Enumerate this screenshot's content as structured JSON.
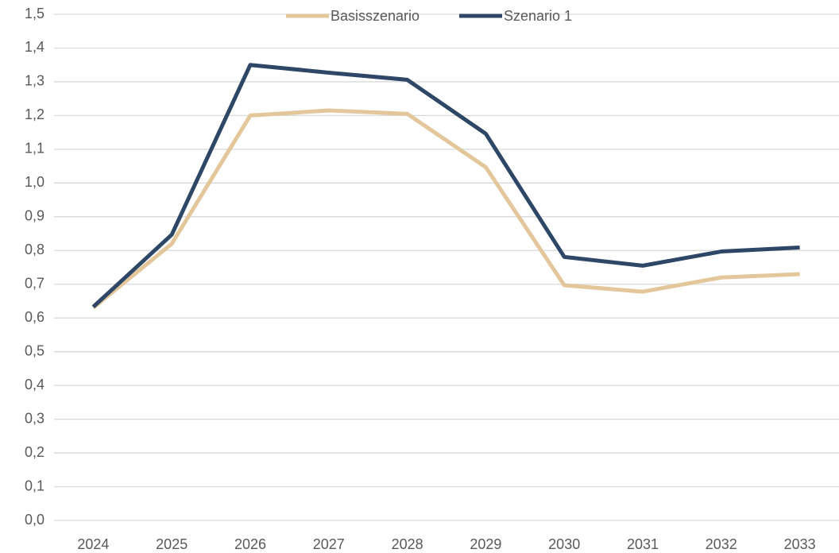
{
  "chart_data": {
    "type": "line",
    "categories": [
      "2024",
      "2025",
      "2026",
      "2027",
      "2028",
      "2029",
      "2030",
      "2031",
      "2032",
      "2033"
    ],
    "series": [
      {
        "name": "Basisszenario",
        "color": "#e3c79b",
        "values": [
          0.63,
          0.82,
          1.2,
          1.215,
          1.205,
          1.047,
          0.697,
          0.678,
          0.72,
          0.73
        ]
      },
      {
        "name": "Szenario 1",
        "color": "#2e4766",
        "values": [
          0.633,
          0.847,
          1.35,
          1.327,
          1.306,
          1.146,
          0.781,
          0.755,
          0.797,
          0.809
        ]
      }
    ],
    "ylim": [
      0,
      1.5
    ],
    "yticks": [
      {
        "value": 0,
        "label": "0,0"
      },
      {
        "value": 0.1,
        "label": "0,1"
      },
      {
        "value": 0.2,
        "label": "0,2"
      },
      {
        "value": 0.3,
        "label": "0,3"
      },
      {
        "value": 0.4,
        "label": "0,4"
      },
      {
        "value": 0.5,
        "label": "0,5"
      },
      {
        "value": 0.6,
        "label": "0,6"
      },
      {
        "value": 0.7,
        "label": "0,7"
      },
      {
        "value": 0.8,
        "label": "0,8"
      },
      {
        "value": 0.9,
        "label": "0,9"
      },
      {
        "value": 1.0,
        "label": "1,0"
      },
      {
        "value": 1.1,
        "label": "1,1"
      },
      {
        "value": 1.2,
        "label": "1,2"
      },
      {
        "value": 1.3,
        "label": "1,3"
      },
      {
        "value": 1.4,
        "label": "1,4"
      },
      {
        "value": 1.5,
        "label": "1,5"
      }
    ],
    "grid": true,
    "legend": "top"
  }
}
